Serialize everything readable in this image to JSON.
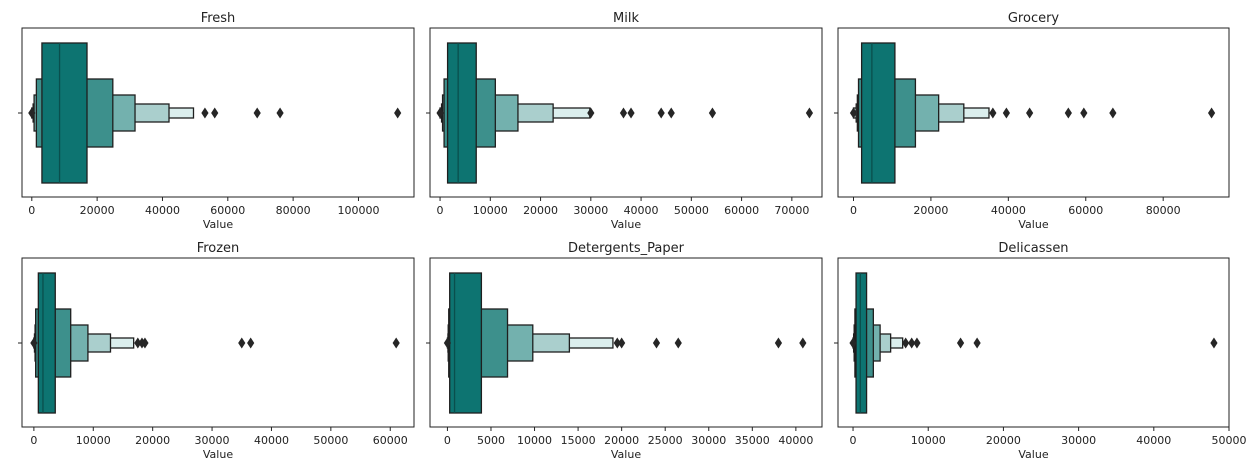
{
  "colors": {
    "fill_levels": [
      "#0d7471",
      "#3d908c",
      "#73b1ae",
      "#aacfcd",
      "#dbeeed"
    ],
    "edge": "#1f1f1f",
    "outlier": "#262626",
    "median": "#0a4f4d",
    "axis": "#222222"
  },
  "chart_data": [
    {
      "type": "boxen",
      "title": "Fresh",
      "xlabel": "Value",
      "xlim": [
        -3000,
        117000
      ],
      "xticks": [
        0,
        20000,
        40000,
        60000,
        80000,
        100000
      ],
      "xtick_labels": [
        "0",
        "20000",
        "40000",
        "60000",
        "80000",
        "100000"
      ],
      "median": 8500,
      "levels": [
        [
          3100,
          16900
        ],
        [
          1400,
          24800
        ],
        [
          700,
          31600
        ],
        [
          400,
          42000
        ],
        [
          0,
          49500
        ]
      ],
      "outliers": [
        0,
        53000,
        56000,
        69000,
        76000,
        112000
      ]
    },
    {
      "type": "boxen",
      "title": "Milk",
      "xlabel": "Value",
      "xlim": [
        -2000,
        76000
      ],
      "xticks": [
        0,
        10000,
        20000,
        30000,
        40000,
        50000,
        60000,
        70000
      ],
      "xtick_labels": [
        "0",
        "10000",
        "20000",
        "30000",
        "40000",
        "50000",
        "60000",
        "70000"
      ],
      "median": 3600,
      "levels": [
        [
          1500,
          7200
        ],
        [
          800,
          11000
        ],
        [
          500,
          15500
        ],
        [
          300,
          22500
        ],
        [
          0,
          29800
        ]
      ],
      "outliers": [
        0,
        30000,
        36500,
        38000,
        44000,
        46000,
        54200,
        73500
      ]
    },
    {
      "type": "boxen",
      "title": "Grocery",
      "xlabel": "Value",
      "xlim": [
        -4000,
        97000
      ],
      "xticks": [
        0,
        20000,
        40000,
        60000,
        80000
      ],
      "xtick_labels": [
        "0",
        "20000",
        "40000",
        "60000",
        "80000"
      ],
      "median": 4750,
      "levels": [
        [
          2100,
          10700
        ],
        [
          1300,
          16000
        ],
        [
          1000,
          22000
        ],
        [
          700,
          28500
        ],
        [
          0,
          35000
        ]
      ],
      "outliers": [
        0,
        36000,
        39500,
        45500,
        55500,
        59500,
        67000,
        92500
      ]
    },
    {
      "type": "boxen",
      "title": "Frozen",
      "xlabel": "Value",
      "xlim": [
        -2000,
        64000
      ],
      "xticks": [
        0,
        10000,
        20000,
        30000,
        40000,
        50000,
        60000
      ],
      "xtick_labels": [
        "0",
        "10000",
        "20000",
        "30000",
        "40000",
        "50000",
        "60000"
      ],
      "median": 1530,
      "levels": [
        [
          750,
          3600
        ],
        [
          300,
          6200
        ],
        [
          200,
          9100
        ],
        [
          100,
          12900
        ],
        [
          0,
          16800
        ]
      ],
      "outliers": [
        0,
        17500,
        18200,
        18700,
        35000,
        36500,
        61000
      ]
    },
    {
      "type": "boxen",
      "title": "Detergents_Paper",
      "xlabel": "Value",
      "xlim": [
        -2000,
        43000
      ],
      "xticks": [
        0,
        5000,
        10000,
        15000,
        20000,
        25000,
        30000,
        35000,
        40000
      ],
      "xtick_labels": [
        "0",
        "5000",
        "10000",
        "15000",
        "20000",
        "25000",
        "30000",
        "35000",
        "40000"
      ],
      "median": 820,
      "levels": [
        [
          260,
          3900
        ],
        [
          150,
          6900
        ],
        [
          90,
          9800
        ],
        [
          60,
          14000
        ],
        [
          0,
          19000
        ]
      ],
      "outliers": [
        0,
        19500,
        20000,
        24000,
        26500,
        38000,
        40800
      ]
    },
    {
      "type": "boxen",
      "title": "Delicassen",
      "xlabel": "Value",
      "xlim": [
        -2000,
        50000
      ],
      "xticks": [
        0,
        10000,
        20000,
        30000,
        40000,
        50000
      ],
      "xtick_labels": [
        "0",
        "10000",
        "20000",
        "30000",
        "40000",
        "50000"
      ],
      "median": 966,
      "levels": [
        [
          400,
          1800
        ],
        [
          250,
          2700
        ],
        [
          150,
          3600
        ],
        [
          80,
          5000
        ],
        [
          0,
          6600
        ]
      ],
      "outliers": [
        0,
        7000,
        7800,
        8500,
        14300,
        16500,
        48000
      ]
    }
  ]
}
